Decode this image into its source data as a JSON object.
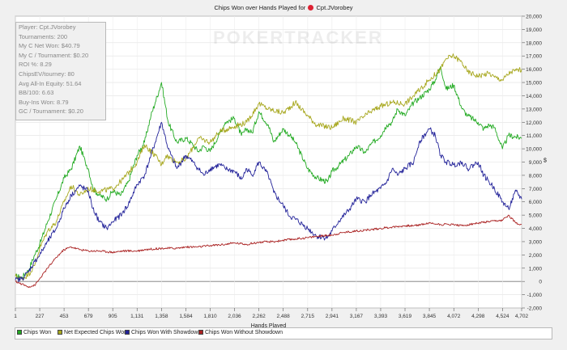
{
  "chart_data": {
    "type": "line",
    "title": "Chips Won over Hands Played for",
    "player": "Cpt.JVorobey",
    "xlabel": "Hands Played",
    "ylabel": "$",
    "xlim": [
      1,
      4702
    ],
    "ylim": [
      -2000,
      20000
    ],
    "x_ticks": [
      "1",
      "227",
      "453",
      "679",
      "905",
      "1,131",
      "1,358",
      "1,584",
      "1,810",
      "2,036",
      "2,262",
      "2,488",
      "2,715",
      "2,941",
      "3,167",
      "3,393",
      "3,619",
      "3,845",
      "4,072",
      "4,298",
      "4,524",
      "4,702"
    ],
    "y_ticks": [
      "-2,000",
      "-1,000",
      "0",
      "1,000",
      "2,000",
      "3,000",
      "4,000",
      "5,000",
      "6,000",
      "7,000",
      "8,000",
      "9,000",
      "10,000",
      "11,000",
      "12,000",
      "13,000",
      "14,000",
      "15,000",
      "16,000",
      "17,000",
      "18,000",
      "19,000",
      "20,000"
    ],
    "grid": true,
    "legend_position": "bottom",
    "series": [
      {
        "name": "Chips Won",
        "color": "#22aa22",
        "x": [
          1,
          60,
          120,
          180,
          227,
          300,
          380,
          453,
          520,
          600,
          650,
          679,
          720,
          780,
          850,
          905,
          980,
          1050,
          1131,
          1200,
          1260,
          1300,
          1358,
          1420,
          1500,
          1584,
          1650,
          1700,
          1750,
          1810,
          1900,
          1950,
          2036,
          2100,
          2150,
          2200,
          2262,
          2350,
          2400,
          2488,
          2550,
          2600,
          2715,
          2800,
          2900,
          2941,
          3000,
          3100,
          3167,
          3250,
          3300,
          3393,
          3450,
          3500,
          3550,
          3619,
          3700,
          3750,
          3845,
          3900,
          3950,
          4000,
          4072,
          4150,
          4200,
          4298,
          4350,
          4400,
          4450,
          4524,
          4580,
          4650,
          4702
        ],
        "values": [
          400,
          300,
          800,
          2000,
          2800,
          4500,
          6200,
          7800,
          8500,
          10200,
          9000,
          8500,
          7000,
          6500,
          6200,
          6800,
          6500,
          7500,
          9500,
          10500,
          12500,
          13500,
          15000,
          12000,
          10500,
          10800,
          10300,
          9800,
          10200,
          9800,
          11200,
          12000,
          12300,
          11000,
          11500,
          11200,
          12800,
          11800,
          10500,
          11500,
          11000,
          10500,
          8500,
          7800,
          7500,
          8300,
          8700,
          9500,
          10200,
          9700,
          10300,
          11000,
          11800,
          12000,
          13000,
          12500,
          13500,
          13800,
          14500,
          15200,
          16200,
          14500,
          14800,
          13000,
          12500,
          12000,
          11500,
          11800,
          11600,
          10000,
          11000,
          10900,
          10800
        ]
      },
      {
        "name": "Net Expected Chips Won",
        "color": "#a8a820",
        "x": [
          1,
          60,
          120,
          180,
          227,
          300,
          380,
          453,
          520,
          600,
          679,
          780,
          905,
          1000,
          1131,
          1200,
          1300,
          1358,
          1400,
          1500,
          1584,
          1700,
          1810,
          1900,
          2036,
          2150,
          2262,
          2350,
          2488,
          2600,
          2715,
          2800,
          2941,
          3050,
          3167,
          3300,
          3393,
          3500,
          3619,
          3700,
          3845,
          3950,
          4000,
          4072,
          4150,
          4200,
          4298,
          4350,
          4400,
          4450,
          4524,
          4600,
          4650,
          4702
        ],
        "values": [
          400,
          200,
          500,
          1200,
          2500,
          3800,
          4500,
          6000,
          7200,
          6500,
          7000,
          6800,
          7000,
          7700,
          9000,
          10300,
          9500,
          8800,
          9500,
          9000,
          9200,
          10800,
          10500,
          11300,
          11700,
          12000,
          13400,
          13000,
          12700,
          13500,
          12500,
          11800,
          11600,
          12300,
          12000,
          12800,
          13200,
          13500,
          13400,
          14000,
          15200,
          16000,
          16800,
          17000,
          16500,
          15800,
          15500,
          15600,
          15700,
          15400,
          15200,
          15800,
          15900,
          16000
        ]
      },
      {
        "name": "Chips Won With Showdown",
        "color": "#222299",
        "x": [
          1,
          60,
          120,
          180,
          227,
          300,
          380,
          453,
          520,
          600,
          679,
          720,
          780,
          850,
          905,
          980,
          1050,
          1131,
          1200,
          1260,
          1300,
          1358,
          1420,
          1500,
          1584,
          1650,
          1700,
          1750,
          1810,
          1900,
          1950,
          2036,
          2100,
          2150,
          2200,
          2262,
          2350,
          2400,
          2488,
          2550,
          2600,
          2715,
          2800,
          2900,
          2941,
          3000,
          3100,
          3167,
          3250,
          3300,
          3393,
          3450,
          3500,
          3550,
          3619,
          3700,
          3750,
          3845,
          3900,
          3950,
          4000,
          4072,
          4150,
          4200,
          4298,
          4350,
          4400,
          4450,
          4524,
          4580,
          4650,
          4702
        ],
        "values": [
          100,
          200,
          700,
          1500,
          2000,
          3000,
          4000,
          5500,
          6500,
          7200,
          6800,
          5500,
          4500,
          4000,
          4500,
          5000,
          5800,
          7300,
          8000,
          9500,
          10500,
          12000,
          10000,
          8500,
          9500,
          9000,
          8500,
          8000,
          8500,
          8800,
          8500,
          8300,
          7700,
          8500,
          8000,
          9000,
          8000,
          6700,
          5700,
          4900,
          4700,
          4000,
          3400,
          3300,
          3800,
          4500,
          5400,
          6200,
          6000,
          6500,
          7000,
          7500,
          8500,
          8000,
          8500,
          9000,
          10500,
          11500,
          11000,
          9500,
          9000,
          8800,
          9000,
          8500,
          9000,
          8000,
          7500,
          7000,
          6000,
          5500,
          6800,
          6200
        ]
      },
      {
        "name": "Chips Won Without Showdown",
        "color": "#aa2222",
        "x": [
          1,
          60,
          120,
          180,
          227,
          300,
          380,
          453,
          520,
          600,
          679,
          780,
          905,
          1000,
          1131,
          1200,
          1358,
          1500,
          1584,
          1700,
          1810,
          1950,
          2036,
          2150,
          2262,
          2400,
          2488,
          2600,
          2715,
          2800,
          2941,
          3050,
          3167,
          3300,
          3393,
          3500,
          3619,
          3700,
          3845,
          3950,
          4072,
          4150,
          4298,
          4400,
          4524,
          4580,
          4650,
          4702
        ],
        "values": [
          0,
          -200,
          -400,
          -300,
          200,
          1000,
          1800,
          2400,
          2600,
          2400,
          2300,
          2300,
          2200,
          2300,
          2300,
          2400,
          2500,
          2500,
          2600,
          2600,
          2700,
          2800,
          2900,
          2800,
          2950,
          3000,
          3100,
          3200,
          3300,
          3400,
          3500,
          3700,
          3800,
          3900,
          4000,
          4100,
          4200,
          4200,
          4400,
          4300,
          4300,
          4200,
          4400,
          4500,
          4600,
          5000,
          4400,
          4300
        ]
      }
    ]
  },
  "stats_box": {
    "lines": [
      "Player: Cpt.JVorobey",
      "Tournaments: 200",
      "My C Net Won: $40.79",
      "My C / Tournament: $0.20",
      "ROI %: 8.29",
      "ChipsEV/tourney: 80",
      "Avg All-In Equity: 51.64",
      "BB/100: 6.63",
      "Buy-Ins Won: 8.79",
      "GC / Tournament: $0.20"
    ]
  },
  "watermark": "POKERTRACKER",
  "player_icon": "poker-chip-icon"
}
